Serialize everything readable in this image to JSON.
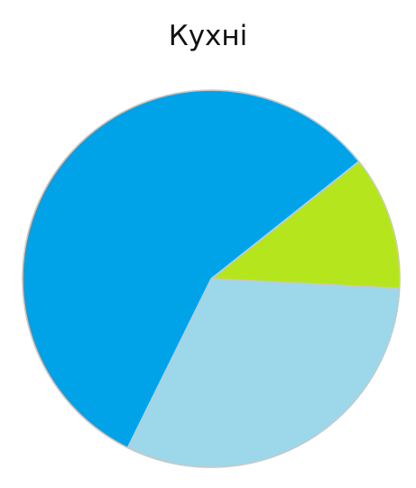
{
  "chart_data": {
    "type": "pie",
    "title": "Кухні",
    "slices": [
      {
        "label": "",
        "value": 11.5,
        "color": "#b5e61d"
      },
      {
        "label": "",
        "value": 31.5,
        "color": "#9cd8e9"
      },
      {
        "label": "",
        "value": 57.0,
        "color": "#00a2e8"
      }
    ],
    "start_angle_deg": -38.5,
    "stroke_color": "#c8c8c8"
  }
}
